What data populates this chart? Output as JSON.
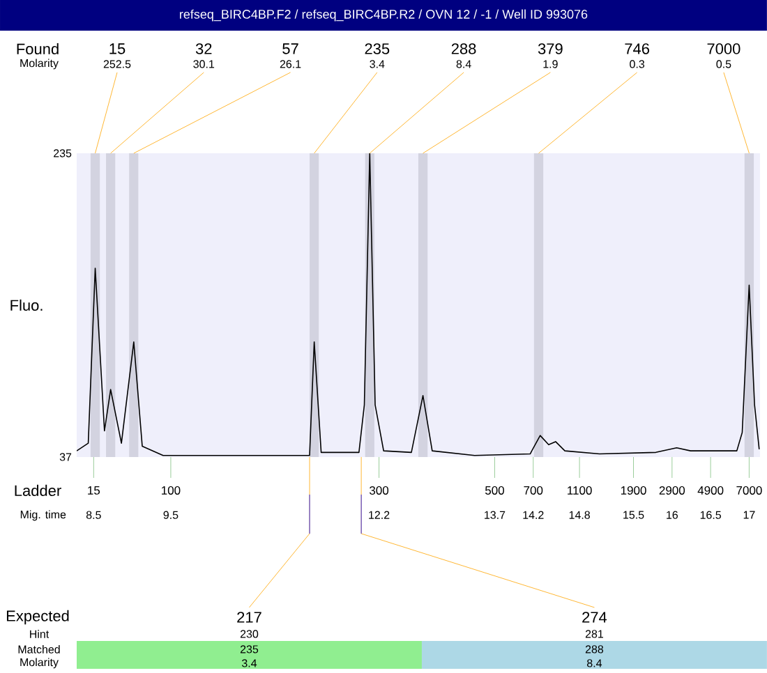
{
  "chart_data": {
    "type": "line",
    "title": "refseq_BIRC4BP.F2 / refseq_BIRC4BP.R2 / OVN 12 / -1 / Well ID 993076",
    "ylabel": "Fluo.",
    "xlabel": "Mig. time",
    "color": "#000000",
    "x": [
      8.28,
      8.43,
      8.52,
      8.64,
      8.72,
      8.86,
      9.02,
      9.13,
      9.4,
      10.54,
      11.3,
      11.36,
      11.45,
      11.94,
      12.01,
      12.08,
      12.15,
      12.26,
      12.62,
      12.77,
      12.89,
      13.44,
      14.16,
      14.29,
      14.4,
      14.49,
      14.61,
      15.06,
      15.79,
      16.06,
      16.24,
      16.6,
      16.84,
      16.91,
      17.0,
      17.07,
      17.13
    ],
    "values": [
      41,
      46,
      160,
      54,
      81,
      46,
      112,
      44,
      38,
      38,
      38,
      112,
      40,
      40,
      71,
      235,
      71,
      41,
      40,
      77,
      41,
      38,
      39,
      51,
      45,
      47,
      41,
      39,
      40,
      43,
      41,
      41,
      41,
      53,
      149,
      71,
      42
    ],
    "xlim": [
      8.28,
      17.14
    ],
    "ylim": [
      37,
      235
    ],
    "yticks": [
      37,
      235
    ],
    "xticks": [
      8.5,
      9.5,
      12.2,
      13.7,
      14.2,
      14.8,
      15.5,
      16,
      16.5,
      17
    ],
    "bands": [
      {
        "axis": "x",
        "from": 8.46,
        "to": 8.58,
        "label": "15",
        "color": "#d3d3e0"
      },
      {
        "axis": "x",
        "from": 8.66,
        "to": 8.78,
        "label": "32",
        "color": "#d3d3e0"
      },
      {
        "axis": "x",
        "from": 8.96,
        "to": 9.08,
        "label": "57",
        "color": "#d3d3e0"
      },
      {
        "axis": "x",
        "from": 11.3,
        "to": 11.42,
        "label": "235",
        "color": "#d3d3e0"
      },
      {
        "axis": "x",
        "from": 12.02,
        "to": 12.14,
        "label": "288",
        "color": "#d3d3e0"
      },
      {
        "axis": "x",
        "from": 12.71,
        "to": 12.83,
        "label": "379",
        "color": "#d3d3e0"
      },
      {
        "axis": "x",
        "from": 14.21,
        "to": 14.33,
        "label": "746",
        "color": "#d3d3e0"
      },
      {
        "axis": "x",
        "from": 16.94,
        "to": 17.06,
        "label": "7000",
        "color": "#d3d3e0"
      }
    ],
    "annotations": [
      "Found",
      "Molarity",
      "Ladder",
      "Expected",
      "Hint",
      "Matched",
      "Molarity",
      "15",
      "100",
      "300",
      "500",
      "700",
      "1100",
      "1900",
      "2900",
      "4900",
      "7000",
      "230",
      "281",
      "235",
      "288",
      "3.4",
      "8.4",
      {
        "text": "252.5",
        "x": 8.52,
        "y": 235
      },
      {
        "text": "30.1",
        "x": 8.72,
        "y": 235
      },
      {
        "text": "26.1",
        "x": 9.02,
        "y": 235
      },
      {
        "text": "3.4",
        "x": 11.36,
        "y": 235
      },
      {
        "text": "8.4",
        "x": 12.08,
        "y": 235
      },
      {
        "text": "1.9",
        "x": 12.77,
        "y": 235
      },
      {
        "text": "0.3",
        "x": 14.27,
        "y": 235
      },
      {
        "text": "0.5",
        "x": 17.0,
        "y": 235
      },
      {
        "text": "217",
        "x": 11.3,
        "y": 37
      },
      {
        "text": "274",
        "x": 11.97,
        "y": 37
      }
    ]
  }
}
